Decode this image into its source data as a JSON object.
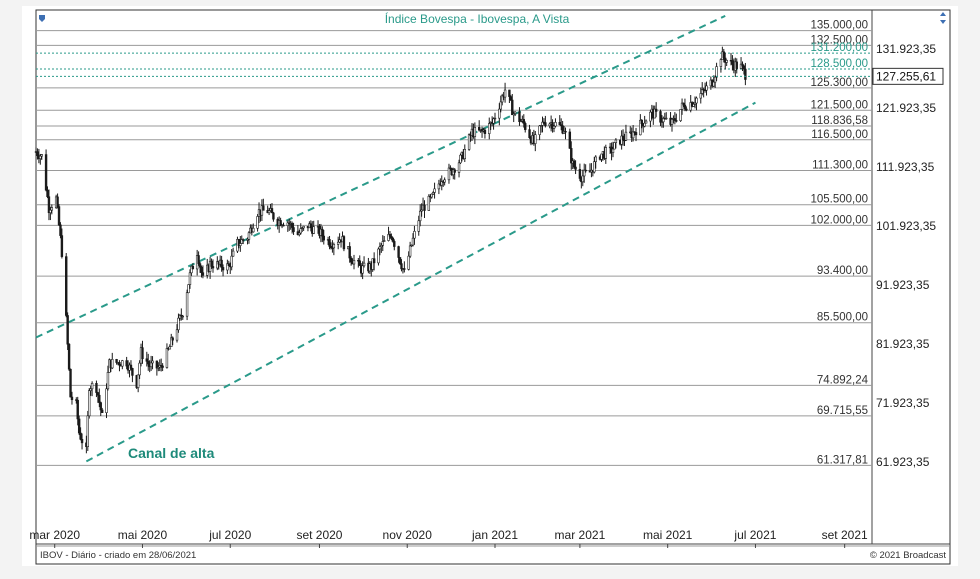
{
  "chart_data": {
    "type": "candlestick",
    "title": "Índice Bovespa - Ibovespa, A Vista",
    "footer_left": "IBOV - Diário - criado em 28/06/2021",
    "footer_right": "© 2021 Broadcast",
    "annotation": "Canal de alta",
    "x_ticks": [
      "mar 2020",
      "mai 2020",
      "jul 2020",
      "set 2020",
      "nov 2020",
      "jan 2021",
      "mar 2021",
      "mai 2021",
      "jul 2021",
      "set 2021"
    ],
    "xlim": [
      "2020-02-17",
      "2021-09-20"
    ],
    "ylim": [
      48000,
      138500
    ],
    "grid": "horizontal",
    "levels": [
      {
        "value": 135000,
        "label": "135.000,00",
        "style": "solid"
      },
      {
        "value": 132500,
        "label": "132.500,00",
        "style": "solid"
      },
      {
        "value": 131200,
        "label": "131.200,00",
        "style": "dotted"
      },
      {
        "value": 128500,
        "label": "128.500,00",
        "style": "dotted"
      },
      {
        "value": 125300,
        "label": "125.300,00",
        "style": "solid"
      },
      {
        "value": 121500,
        "label": "121.500,00",
        "style": "solid"
      },
      {
        "value": 118836.58,
        "label": "118.836,58",
        "style": "solid"
      },
      {
        "value": 116500,
        "label": "116.500,00",
        "style": "solid"
      },
      {
        "value": 111300,
        "label": "111.300,00",
        "style": "solid"
      },
      {
        "value": 105500,
        "label": "105.500,00",
        "style": "solid"
      },
      {
        "value": 102000,
        "label": "102.000,00",
        "style": "solid"
      },
      {
        "value": 93400,
        "label": "93.400,00",
        "style": "solid"
      },
      {
        "value": 85500,
        "label": "85.500,00",
        "style": "solid"
      },
      {
        "value": 74892.24,
        "label": "74.892,24",
        "style": "solid"
      },
      {
        "value": 69715.55,
        "label": "69.715,55",
        "style": "solid"
      },
      {
        "value": 61317.81,
        "label": "61.317,81",
        "style": "solid"
      }
    ],
    "y_axis_labels": [
      {
        "value": 131923.35,
        "label": "131.923,35"
      },
      {
        "value": 121923.35,
        "label": "121.923,35"
      },
      {
        "value": 111923.35,
        "label": "111.923,35"
      },
      {
        "value": 101923.35,
        "label": "101.923,35"
      },
      {
        "value": 91923.35,
        "label": "91.923,35"
      },
      {
        "value": 81923.35,
        "label": "81.923,35"
      },
      {
        "value": 71923.35,
        "label": "71.923,35"
      },
      {
        "value": 61923.35,
        "label": "61.923,35"
      }
    ],
    "last_price": {
      "value": 127255.61,
      "label": "127.255,61"
    },
    "channel_lines": [
      {
        "name": "upper",
        "from": {
          "x": "2020-02-17",
          "y": 83000
        },
        "to": {
          "x": "2021-06-10",
          "y": 137500
        }
      },
      {
        "name": "lower",
        "from": {
          "x": "2020-03-23",
          "y": 62000
        },
        "to": {
          "x": "2021-07-01",
          "y": 122800
        }
      }
    ],
    "series": [
      {
        "name": "IBOV",
        "close_path": [
          [
            "2020-02-17",
            114500
          ],
          [
            "2020-02-21",
            113700
          ],
          [
            "2020-02-26",
            105000
          ],
          [
            "2020-03-02",
            106500
          ],
          [
            "2020-03-06",
            97500
          ],
          [
            "2020-03-09",
            86000
          ],
          [
            "2020-03-12",
            73000
          ],
          [
            "2020-03-16",
            71500
          ],
          [
            "2020-03-18",
            66900
          ],
          [
            "2020-03-23",
            63600
          ],
          [
            "2020-03-25",
            74900
          ],
          [
            "2020-03-30",
            74600
          ],
          [
            "2020-04-03",
            69500
          ],
          [
            "2020-04-08",
            78600
          ],
          [
            "2020-04-14",
            78800
          ],
          [
            "2020-04-20",
            78900
          ],
          [
            "2020-04-27",
            75300
          ],
          [
            "2020-04-30",
            80500
          ],
          [
            "2020-05-06",
            78200
          ],
          [
            "2020-05-13",
            77800
          ],
          [
            "2020-05-19",
            80700
          ],
          [
            "2020-05-26",
            85500
          ],
          [
            "2020-05-29",
            87400
          ],
          [
            "2020-06-03",
            93500
          ],
          [
            "2020-06-08",
            97600
          ],
          [
            "2020-06-12",
            92800
          ],
          [
            "2020-06-17",
            95500
          ],
          [
            "2020-06-22",
            95300
          ],
          [
            "2020-06-30",
            95000
          ],
          [
            "2020-07-06",
            98900
          ],
          [
            "2020-07-13",
            100000
          ],
          [
            "2020-07-20",
            104300
          ],
          [
            "2020-07-27",
            104500
          ],
          [
            "2020-08-03",
            102800
          ],
          [
            "2020-08-10",
            102600
          ],
          [
            "2020-08-17",
            100500
          ],
          [
            "2020-08-24",
            102000
          ],
          [
            "2020-09-01",
            100800
          ],
          [
            "2020-09-09",
            99000
          ],
          [
            "2020-09-16",
            99900
          ],
          [
            "2020-09-23",
            96500
          ],
          [
            "2020-09-30",
            94600
          ],
          [
            "2020-10-07",
            95000
          ],
          [
            "2020-10-14",
            98500
          ],
          [
            "2020-10-21",
            100500
          ],
          [
            "2020-10-28",
            95400
          ],
          [
            "2020-10-30",
            93900
          ],
          [
            "2020-11-04",
            98700
          ],
          [
            "2020-11-11",
            104800
          ],
          [
            "2020-11-18",
            106500
          ],
          [
            "2020-11-25",
            110100
          ],
          [
            "2020-12-02",
            111300
          ],
          [
            "2020-12-09",
            113500
          ],
          [
            "2020-12-16",
            117800
          ],
          [
            "2020-12-23",
            117800
          ],
          [
            "2020-12-30",
            119300
          ],
          [
            "2021-01-08",
            125000
          ],
          [
            "2021-01-14",
            121000
          ],
          [
            "2021-01-21",
            119200
          ],
          [
            "2021-01-28",
            115900
          ],
          [
            "2021-02-04",
            119700
          ],
          [
            "2021-02-11",
            119300
          ],
          [
            "2021-02-18",
            118400
          ],
          [
            "2021-02-24",
            112300
          ],
          [
            "2021-03-02",
            110300
          ],
          [
            "2021-03-08",
            111000
          ],
          [
            "2021-03-15",
            114000
          ],
          [
            "2021-03-22",
            114500
          ],
          [
            "2021-03-29",
            116500
          ],
          [
            "2021-04-06",
            117500
          ],
          [
            "2021-04-13",
            119300
          ],
          [
            "2021-04-20",
            121100
          ],
          [
            "2021-04-27",
            120000
          ],
          [
            "2021-05-04",
            119200
          ],
          [
            "2021-05-11",
            122100
          ],
          [
            "2021-05-18",
            122900
          ],
          [
            "2021-05-25",
            124400
          ],
          [
            "2021-06-01",
            126400
          ],
          [
            "2021-06-07",
            130800
          ],
          [
            "2021-06-14",
            129400
          ],
          [
            "2021-06-21",
            128800
          ],
          [
            "2021-06-25",
            127255.61
          ]
        ]
      }
    ]
  }
}
